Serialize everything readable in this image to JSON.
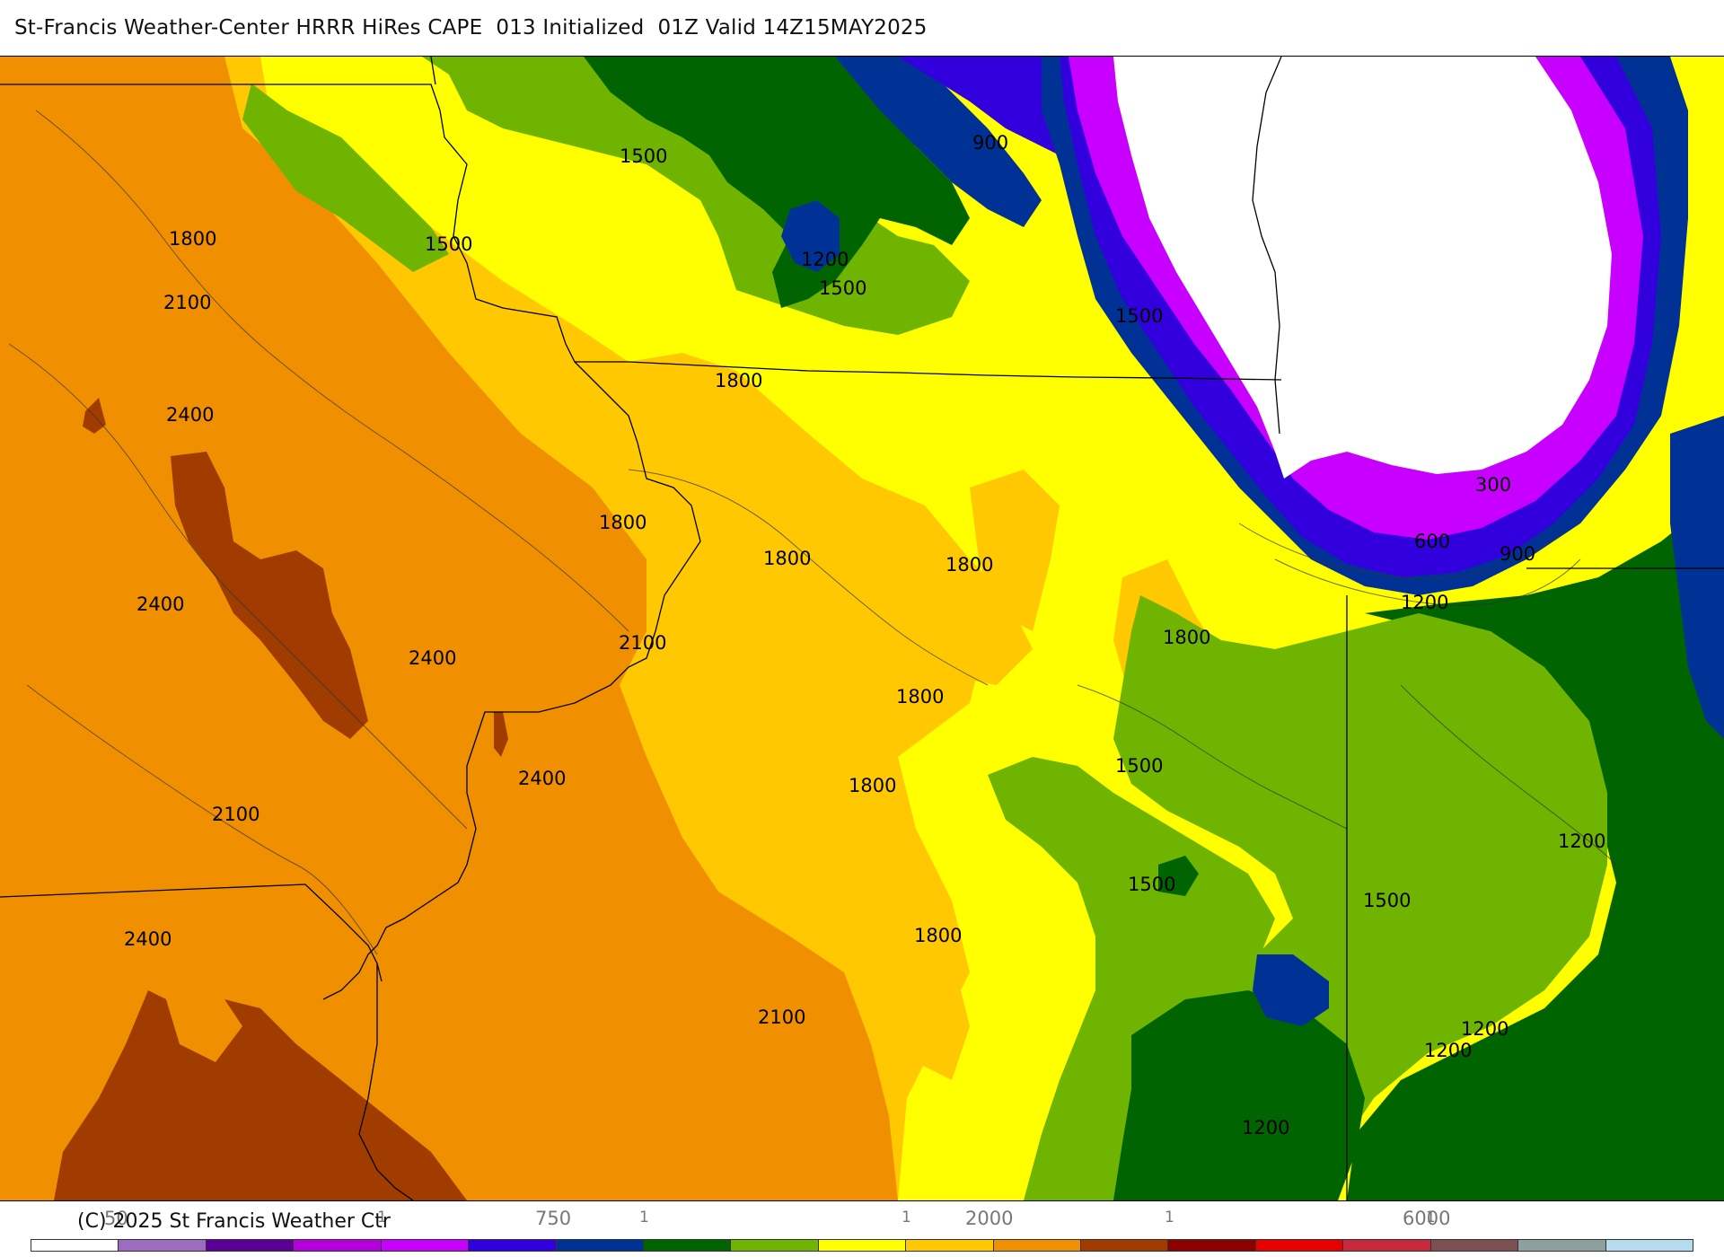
{
  "header": {
    "title": "St-Francis Weather-Center HRRR HiRes CAPE  013 Initialized  01Z Valid 14Z15MAY2025"
  },
  "map": {
    "contour_labels": [
      {
        "id": "c1",
        "text": "1500"
      },
      {
        "id": "c2",
        "text": "900"
      },
      {
        "id": "c3",
        "text": "1800"
      },
      {
        "id": "c4",
        "text": "1500"
      },
      {
        "id": "c5",
        "text": "1200"
      },
      {
        "id": "c6",
        "text": "1500"
      },
      {
        "id": "c7",
        "text": "2100"
      },
      {
        "id": "c8",
        "text": "1500"
      },
      {
        "id": "c9",
        "text": "1800"
      },
      {
        "id": "c10",
        "text": "2400"
      },
      {
        "id": "c11",
        "text": "300"
      },
      {
        "id": "c12",
        "text": "1800"
      },
      {
        "id": "c13",
        "text": "600"
      },
      {
        "id": "c14",
        "text": "900"
      },
      {
        "id": "c15",
        "text": "1800"
      },
      {
        "id": "c16",
        "text": "1800"
      },
      {
        "id": "c17",
        "text": "2400"
      },
      {
        "id": "c18",
        "text": "1200"
      },
      {
        "id": "c19",
        "text": "2100"
      },
      {
        "id": "c20",
        "text": "1800"
      },
      {
        "id": "c21",
        "text": "2400"
      },
      {
        "id": "c22",
        "text": "1800"
      },
      {
        "id": "c23",
        "text": "1500"
      },
      {
        "id": "c24",
        "text": "2400"
      },
      {
        "id": "c25",
        "text": "2100"
      },
      {
        "id": "c26",
        "text": "1800"
      },
      {
        "id": "c27",
        "text": "1200"
      },
      {
        "id": "c28",
        "text": "1500"
      },
      {
        "id": "c29",
        "text": "1500"
      },
      {
        "id": "c30",
        "text": "2400"
      },
      {
        "id": "c31",
        "text": "1800"
      },
      {
        "id": "c32",
        "text": "2100"
      },
      {
        "id": "c33",
        "text": "1200"
      },
      {
        "id": "c34",
        "text": "1200"
      },
      {
        "id": "c35",
        "text": "1200"
      }
    ]
  },
  "footer": {
    "copyright": "(C) 2025 St Francis Weather Ctr",
    "ticks": [
      {
        "text": "50"
      },
      {
        "text": "750"
      },
      {
        "text": "2000"
      },
      {
        "text": "6000"
      }
    ],
    "tick_glyph": "1"
  },
  "colorbar": {
    "colors": [
      "#ffffff",
      "#9c6cc0",
      "#5a0096",
      "#b400dc",
      "#c800ff",
      "#3200dc",
      "#003296",
      "#006400",
      "#6eb400",
      "#ffff00",
      "#ffc800",
      "#f09000",
      "#a03c00",
      "#8c0000",
      "#e60000",
      "#c8283c",
      "#7a5050",
      "#8ca0a0",
      "#b4dcee"
    ]
  },
  "palette": {
    "land": "#ffff00",
    "lake": "#ffffff",
    "boundary": "#000000"
  }
}
